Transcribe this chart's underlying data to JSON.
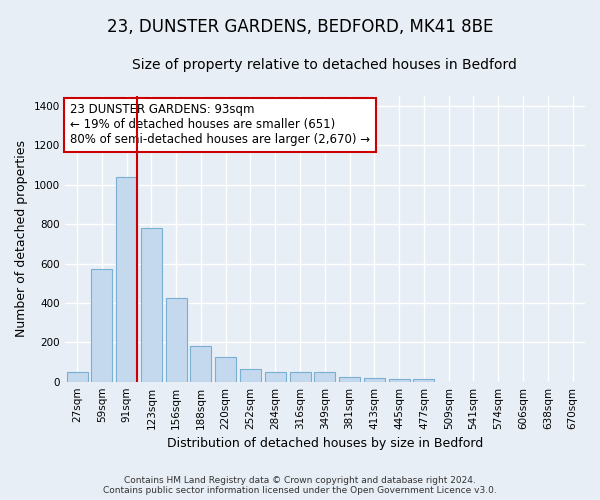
{
  "title": "23, DUNSTER GARDENS, BEDFORD, MK41 8BE",
  "subtitle": "Size of property relative to detached houses in Bedford",
  "xlabel": "Distribution of detached houses by size in Bedford",
  "ylabel": "Number of detached properties",
  "footer_line1": "Contains HM Land Registry data © Crown copyright and database right 2024.",
  "footer_line2": "Contains public sector information licensed under the Open Government Licence v3.0.",
  "bar_labels": [
    "27sqm",
    "59sqm",
    "91sqm",
    "123sqm",
    "156sqm",
    "188sqm",
    "220sqm",
    "252sqm",
    "284sqm",
    "316sqm",
    "349sqm",
    "381sqm",
    "413sqm",
    "445sqm",
    "477sqm",
    "509sqm",
    "541sqm",
    "574sqm",
    "606sqm",
    "638sqm",
    "670sqm"
  ],
  "bar_values": [
    50,
    570,
    1040,
    780,
    425,
    180,
    125,
    65,
    50,
    50,
    50,
    25,
    20,
    15,
    12,
    0,
    0,
    0,
    0,
    0,
    0
  ],
  "bar_color": "#c5d9ee",
  "bar_edge_color": "#7aafd4",
  "annotation_text": "23 DUNSTER GARDENS: 93sqm\n← 19% of detached houses are smaller (651)\n80% of semi-detached houses are larger (2,670) →",
  "annotation_box_color": "#ffffff",
  "annotation_border_color": "#cc0000",
  "vline_color": "#cc0000",
  "vline_x": 2.425,
  "ylim": [
    0,
    1450
  ],
  "background_color": "#e8eef5",
  "grid_color": "#ffffff",
  "title_fontsize": 12,
  "subtitle_fontsize": 10,
  "axis_label_fontsize": 9,
  "tick_fontsize": 7.5,
  "annotation_fontsize": 8.5
}
